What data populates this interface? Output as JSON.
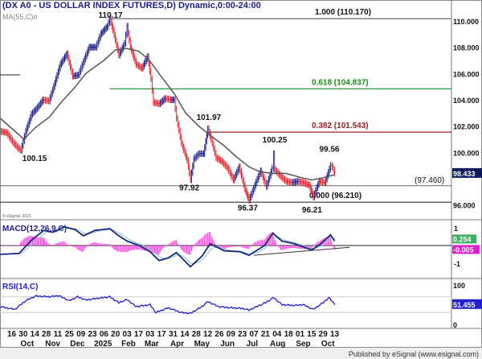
{
  "header": {
    "title": "(DX A0 - US DOLLAR INDEX FUTURES,D) Dynamic,0:00-24:00",
    "ma_label": "MA(55,C)e",
    "copyright": "© eSignal, 2021"
  },
  "footer": {
    "text": "Published by eSignal (www.esignal.com)"
  },
  "colors": {
    "up": "#1a1a8c",
    "down": "#e8202a",
    "ma": "#555555",
    "fib_green": "#1a8a1a",
    "fib_red": "#a02020",
    "macd": "#1a237e",
    "signal": "#7fc8c0",
    "hist": "#ff40e0",
    "rsi": "#2020d0"
  },
  "chart_data": [
    {
      "type": "line",
      "name": "price",
      "ylim": [
        95,
        111
      ],
      "yticks": [
        "110.000",
        "108.000",
        "106.000",
        "104.000",
        "102.000",
        "100.000",
        "96.000"
      ],
      "last_value": "98.433",
      "x_ticks": [
        {
          "date": "2024-09-16",
          "label": "16"
        },
        {
          "date": "2024-09-30",
          "label": "30"
        },
        {
          "date": "2024-10-14",
          "label": "14"
        },
        {
          "date": "2024-10-28",
          "label": "28"
        },
        {
          "date": "2024-11-11",
          "label": "11"
        },
        {
          "date": "2024-11-25",
          "label": "25"
        },
        {
          "date": "2024-12-09",
          "label": "09"
        },
        {
          "date": "2024-12-23",
          "label": "23"
        },
        {
          "date": "2025-01-06",
          "label": "06"
        },
        {
          "date": "2025-01-20",
          "label": "20"
        },
        {
          "date": "2025-02-03",
          "label": "03"
        },
        {
          "date": "2025-02-17",
          "label": "17"
        },
        {
          "date": "2025-03-03",
          "label": "03"
        },
        {
          "date": "2025-03-17",
          "label": "17"
        },
        {
          "date": "2025-03-31",
          "label": "31"
        },
        {
          "date": "2025-04-14",
          "label": "14"
        },
        {
          "date": "2025-04-28",
          "label": "28"
        },
        {
          "date": "2025-05-12",
          "label": "12"
        },
        {
          "date": "2025-05-26",
          "label": "26"
        },
        {
          "date": "2025-06-09",
          "label": "09"
        },
        {
          "date": "2025-06-23",
          "label": "23"
        },
        {
          "date": "2025-07-07",
          "label": "07"
        },
        {
          "date": "2025-07-21",
          "label": "21"
        },
        {
          "date": "2025-08-04",
          "label": "04"
        },
        {
          "date": "2025-08-18",
          "label": "18"
        },
        {
          "date": "2025-09-01",
          "label": "01"
        },
        {
          "date": "2025-09-15",
          "label": "15"
        },
        {
          "date": "2025-09-29",
          "label": "29"
        },
        {
          "date": "2025-10-13",
          "label": "13"
        }
      ],
      "month_ticks": [
        {
          "date": "2024-10-01",
          "label": "Oct"
        },
        {
          "date": "2024-11-01",
          "label": "Nov"
        },
        {
          "date": "2024-12-01",
          "label": "Dec"
        },
        {
          "date": "2025-01-01",
          "label": "2025"
        },
        {
          "date": "2025-02-01",
          "label": "Feb"
        },
        {
          "date": "2025-03-01",
          "label": "Mar"
        },
        {
          "date": "2025-04-01",
          "label": "Apr"
        },
        {
          "date": "2025-05-01",
          "label": "May"
        },
        {
          "date": "2025-06-01",
          "label": "Jun"
        },
        {
          "date": "2025-07-01",
          "label": "Jul"
        },
        {
          "date": "2025-08-01",
          "label": "Aug"
        },
        {
          "date": "2025-09-01",
          "label": "Sep"
        },
        {
          "date": "2025-10-01",
          "label": "Oct"
        }
      ],
      "close": [
        [
          "2024-09-02",
          101.6
        ],
        [
          "2024-09-10",
          101.5
        ],
        [
          "2024-09-17",
          100.8
        ],
        [
          "2024-09-24",
          100.3
        ],
        [
          "2024-09-27",
          100.15
        ],
        [
          "2024-10-03",
          101.6
        ],
        [
          "2024-10-10",
          102.9
        ],
        [
          "2024-10-17",
          103.4
        ],
        [
          "2024-10-24",
          104.0
        ],
        [
          "2024-10-31",
          103.9
        ],
        [
          "2024-11-06",
          105.0
        ],
        [
          "2024-11-14",
          106.7
        ],
        [
          "2024-11-22",
          107.5
        ],
        [
          "2024-11-29",
          105.8
        ],
        [
          "2024-12-06",
          105.9
        ],
        [
          "2024-12-12",
          106.9
        ],
        [
          "2024-12-19",
          108.0
        ],
        [
          "2024-12-27",
          108.0
        ],
        [
          "2025-01-02",
          109.0
        ],
        [
          "2025-01-10",
          109.6
        ],
        [
          "2025-01-13",
          110.17
        ],
        [
          "2025-01-17",
          109.3
        ],
        [
          "2025-01-24",
          107.4
        ],
        [
          "2025-01-31",
          108.3
        ],
        [
          "2025-02-03",
          109.6
        ],
        [
          "2025-02-07",
          108.0
        ],
        [
          "2025-02-14",
          106.7
        ],
        [
          "2025-02-21",
          106.4
        ],
        [
          "2025-02-28",
          107.3
        ],
        [
          "2025-03-04",
          105.6
        ],
        [
          "2025-03-07",
          103.8
        ],
        [
          "2025-03-14",
          103.7
        ],
        [
          "2025-03-21",
          104.1
        ],
        [
          "2025-03-28",
          104.0
        ],
        [
          "2025-04-01",
          104.0
        ],
        [
          "2025-04-04",
          102.6
        ],
        [
          "2025-04-10",
          100.7
        ],
        [
          "2025-04-17",
          99.4
        ],
        [
          "2025-04-21",
          97.92
        ],
        [
          "2025-04-25",
          99.5
        ],
        [
          "2025-05-01",
          99.9
        ],
        [
          "2025-05-07",
          99.9
        ],
        [
          "2025-05-12",
          101.8
        ],
        [
          "2025-05-16",
          101.0
        ],
        [
          "2025-05-22",
          99.6
        ],
        [
          "2025-05-29",
          99.3
        ],
        [
          "2025-06-05",
          98.8
        ],
        [
          "2025-06-12",
          97.9
        ],
        [
          "2025-06-19",
          98.9
        ],
        [
          "2025-06-26",
          97.2
        ],
        [
          "2025-07-01",
          96.37
        ],
        [
          "2025-07-08",
          97.5
        ],
        [
          "2025-07-15",
          98.6
        ],
        [
          "2025-07-22",
          97.4
        ],
        [
          "2025-07-29",
          98.8
        ],
        [
          "2025-07-31",
          99.9
        ],
        [
          "2025-08-01",
          98.7
        ],
        [
          "2025-08-08",
          98.2
        ],
        [
          "2025-08-15",
          97.8
        ],
        [
          "2025-08-22",
          97.7
        ],
        [
          "2025-08-29",
          97.8
        ],
        [
          "2025-09-05",
          97.7
        ],
        [
          "2025-09-12",
          97.5
        ],
        [
          "2025-09-17",
          96.6
        ],
        [
          "2025-09-24",
          97.8
        ],
        [
          "2025-10-01",
          97.7
        ],
        [
          "2025-10-08",
          99.0
        ],
        [
          "2025-10-10",
          98.9
        ],
        [
          "2025-10-13",
          98.43
        ]
      ],
      "ma55": [
        [
          "2024-09-02",
          102.6
        ],
        [
          "2024-10-01",
          101.0
        ],
        [
          "2024-10-15",
          101.9
        ],
        [
          "2024-11-01",
          102.7
        ],
        [
          "2024-11-15",
          103.8
        ],
        [
          "2024-12-01",
          104.9
        ],
        [
          "2024-12-15",
          106.0
        ],
        [
          "2025-01-06",
          107.0
        ],
        [
          "2025-01-20",
          107.8
        ],
        [
          "2025-02-03",
          107.9
        ],
        [
          "2025-02-17",
          107.7
        ],
        [
          "2025-03-01",
          107.1
        ],
        [
          "2025-03-15",
          105.9
        ],
        [
          "2025-04-01",
          104.5
        ],
        [
          "2025-04-15",
          103.0
        ],
        [
          "2025-05-01",
          102.0
        ],
        [
          "2025-05-15",
          101.3
        ],
        [
          "2025-06-01",
          100.5
        ],
        [
          "2025-06-15",
          99.7
        ],
        [
          "2025-07-01",
          98.9
        ],
        [
          "2025-07-15",
          98.5
        ],
        [
          "2025-08-01",
          98.4
        ],
        [
          "2025-08-15",
          98.4
        ],
        [
          "2025-09-01",
          98.1
        ],
        [
          "2025-09-15",
          97.9
        ],
        [
          "2025-10-01",
          98.1
        ],
        [
          "2025-10-13",
          98.3
        ]
      ],
      "fib_levels": [
        {
          "ratio": "1.000",
          "value": 110.17,
          "label": "1.000 (110.170)",
          "from": "2025-01-13",
          "color": "#666666"
        },
        {
          "ratio": "0.618",
          "value": 104.837,
          "label": "0.618 (104.837)",
          "from": "2025-01-13",
          "color": "#1a8a1a"
        },
        {
          "ratio": "0.382",
          "value": 101.543,
          "label": "0.382 (101.543)",
          "from": "2025-05-12",
          "color": "#a02020"
        },
        {
          "ratio": "0.000",
          "value": 96.21,
          "label": "0.000 (96.210)",
          "from": "2024-09-02",
          "color": "#333333"
        }
      ],
      "support_line": {
        "value": 97.46,
        "label": "(97.460)"
      },
      "annotations": [
        {
          "date": "2025-01-13",
          "value": 110.17,
          "label": "110.17"
        },
        {
          "date": "2025-05-12",
          "value": 101.97,
          "label": "101.97"
        },
        {
          "date": "2025-07-31",
          "value": 100.25,
          "label": "100.25"
        },
        {
          "date": "2025-10-08",
          "value": 99.56,
          "label": "99.56"
        },
        {
          "date": "2024-09-27",
          "value": 100.15,
          "label": "100.15"
        },
        {
          "date": "2025-04-21",
          "value": 97.92,
          "label": "97.92"
        },
        {
          "date": "2025-07-01",
          "value": 96.37,
          "label": "96.37"
        },
        {
          "date": "2025-09-17",
          "value": 96.21,
          "label": "96.21"
        }
      ]
    },
    {
      "type": "line",
      "name": "MACD",
      "title": "MACD(12,26,9,C)",
      "yticks": [
        "1",
        "-1"
      ],
      "ylim": [
        -1.6,
        1.4
      ],
      "last_macd": "0.254",
      "last_hist": "-0.005",
      "macd": [
        [
          "2024-09-02",
          -0.5
        ],
        [
          "2024-09-25",
          -0.45
        ],
        [
          "2024-10-10",
          0.3
        ],
        [
          "2024-10-25",
          0.85
        ],
        [
          "2024-11-05",
          0.75
        ],
        [
          "2024-11-19",
          1.05
        ],
        [
          "2024-12-02",
          0.9
        ],
        [
          "2024-12-12",
          0.55
        ],
        [
          "2024-12-26",
          0.85
        ],
        [
          "2025-01-13",
          0.95
        ],
        [
          "2025-01-24",
          0.55
        ],
        [
          "2025-02-03",
          0.25
        ],
        [
          "2025-02-18",
          0.0
        ],
        [
          "2025-03-03",
          -0.35
        ],
        [
          "2025-03-14",
          -0.85
        ],
        [
          "2025-03-25",
          -0.7
        ],
        [
          "2025-04-04",
          -0.4
        ],
        [
          "2025-04-21",
          -1.2
        ],
        [
          "2025-05-05",
          -0.6
        ],
        [
          "2025-05-15",
          0.1
        ],
        [
          "2025-06-01",
          -0.3
        ],
        [
          "2025-06-20",
          -0.35
        ],
        [
          "2025-07-01",
          -0.55
        ],
        [
          "2025-07-20",
          0.0
        ],
        [
          "2025-07-30",
          0.7
        ],
        [
          "2025-08-10",
          0.25
        ],
        [
          "2025-08-25",
          0.1
        ],
        [
          "2025-09-15",
          -0.25
        ],
        [
          "2025-09-25",
          0.05
        ],
        [
          "2025-10-08",
          0.6
        ],
        [
          "2025-10-13",
          0.254
        ]
      ],
      "trendline": [
        [
          "2025-07-07",
          -0.55
        ],
        [
          "2025-10-31",
          -0.1
        ]
      ]
    },
    {
      "type": "line",
      "name": "RSI",
      "title": "RSI(14,C)",
      "yticks": [
        "100",
        "0"
      ],
      "ylim": [
        0,
        100
      ],
      "guides": [
        70,
        30
      ],
      "last_value": "51.455",
      "rsi": [
        [
          "2024-09-02",
          45
        ],
        [
          "2024-09-20",
          38
        ],
        [
          "2024-10-03",
          60
        ],
        [
          "2024-10-15",
          72
        ],
        [
          "2024-11-01",
          70
        ],
        [
          "2024-11-12",
          73
        ],
        [
          "2024-11-25",
          60
        ],
        [
          "2024-12-05",
          70
        ],
        [
          "2024-12-15",
          62
        ],
        [
          "2025-01-06",
          68
        ],
        [
          "2025-01-13",
          70
        ],
        [
          "2025-01-24",
          55
        ],
        [
          "2025-02-03",
          63
        ],
        [
          "2025-02-14",
          45
        ],
        [
          "2025-03-03",
          50
        ],
        [
          "2025-03-10",
          30
        ],
        [
          "2025-03-25",
          42
        ],
        [
          "2025-04-10",
          30
        ],
        [
          "2025-04-21",
          28
        ],
        [
          "2025-05-05",
          45
        ],
        [
          "2025-05-12",
          58
        ],
        [
          "2025-05-25",
          45
        ],
        [
          "2025-06-10",
          42
        ],
        [
          "2025-06-25",
          40
        ],
        [
          "2025-07-01",
          36
        ],
        [
          "2025-07-21",
          55
        ],
        [
          "2025-07-31",
          68
        ],
        [
          "2025-08-10",
          50
        ],
        [
          "2025-08-25",
          48
        ],
        [
          "2025-09-05",
          50
        ],
        [
          "2025-09-17",
          38
        ],
        [
          "2025-09-29",
          55
        ],
        [
          "2025-10-06",
          68
        ],
        [
          "2025-10-13",
          51.455
        ]
      ]
    }
  ]
}
